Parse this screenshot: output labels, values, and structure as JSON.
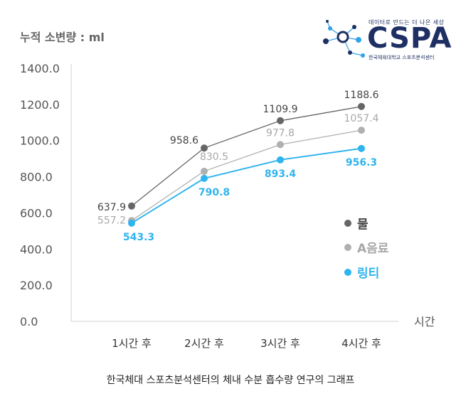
{
  "logo": {
    "tagline": "데이터로 만드는 더 나은 세상",
    "name": "CSPA",
    "subtitle": "한국체육대학교 스포츠분석센터",
    "colors": {
      "navy": "#1e2f63",
      "accent": "#2fa3e6"
    }
  },
  "caption": "한국체대 스포츠분석센터의 체내 수분 흡수량 연구의 그래프",
  "chart_data": {
    "type": "line",
    "ylabel": "누적 소변량 : ml",
    "xlabel": "시간",
    "categories": [
      "1시간 후",
      "2시간 후",
      "3시간 후",
      "4시간 후"
    ],
    "ylim": [
      0,
      1400
    ],
    "yticks": [
      "0.0",
      "200.0",
      "400.0",
      "600.0",
      "800.0",
      "1000.0",
      "1200.0",
      "1400.0"
    ],
    "ytick_values": [
      0,
      200,
      400,
      600,
      800,
      1000,
      1200,
      1400
    ],
    "legend_position": "right",
    "grid": false,
    "series": [
      {
        "name": "물",
        "color": "#666666",
        "values": [
          637.9,
          958.6,
          1109.9,
          1188.6
        ],
        "labels": [
          "637.9",
          "958.6",
          "1109.9",
          "1188.6"
        ]
      },
      {
        "name": "A음료",
        "color": "#b0b0b0",
        "values": [
          557.2,
          830.5,
          977.8,
          1057.4
        ],
        "labels": [
          "557.2",
          "830.5",
          "977.8",
          "1057.4"
        ]
      },
      {
        "name": "링티",
        "color": "#2fb4ee",
        "values": [
          543.3,
          790.8,
          893.4,
          956.3
        ],
        "labels": [
          "543.3",
          "790.8",
          "893.4",
          "956.3"
        ]
      }
    ]
  }
}
